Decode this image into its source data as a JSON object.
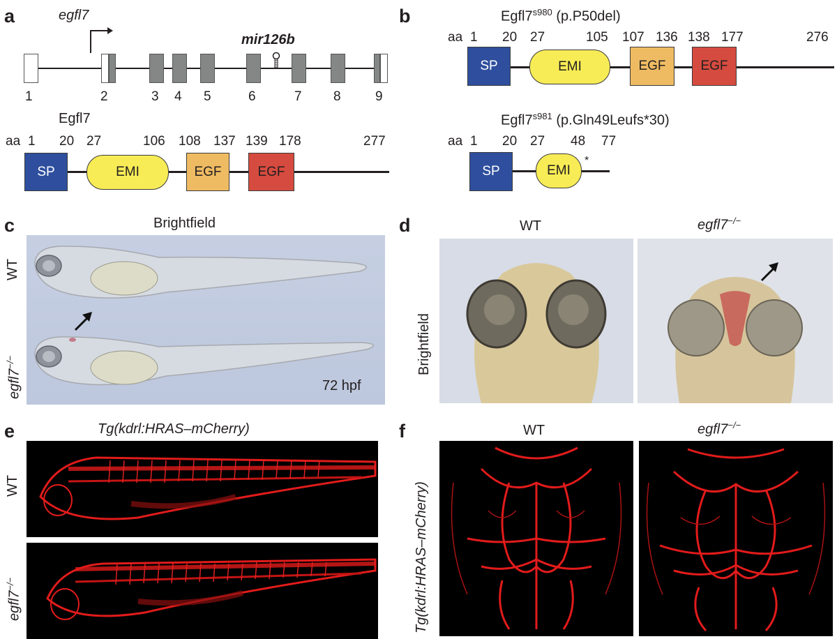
{
  "panel_a": {
    "label": "a",
    "gene": "egfl7",
    "mirna": "mir126b",
    "exon_numbers": [
      "1",
      "2",
      "3",
      "4",
      "5",
      "6",
      "7",
      "8",
      "9"
    ],
    "protein_name": "Egfl7",
    "aa_prefix": "aa",
    "positions": [
      "1",
      "20",
      "27",
      "106",
      "108",
      "137",
      "139",
      "178",
      "277"
    ],
    "domains": {
      "sp": "SP",
      "emi": "EMI",
      "egf1": "EGF",
      "egf2": "EGF"
    }
  },
  "panel_b": {
    "label": "b",
    "allele1": {
      "name": "Egfl7",
      "sup": "s980",
      "change": " (p.P50del)",
      "positions": [
        "1",
        "20",
        "27",
        "105",
        "107",
        "136",
        "138",
        "177",
        "276"
      ],
      "domains": {
        "sp": "SP",
        "emi": "EMI",
        "egf1": "EGF",
        "egf2": "EGF"
      }
    },
    "allele2": {
      "name": "Egfl7",
      "sup": "s981",
      "change": " (p.Gln49Leufs*30)",
      "positions": [
        "1",
        "20",
        "27",
        "48",
        "77"
      ],
      "domains": {
        "sp": "SP",
        "emi": "EMI"
      },
      "stop": "*"
    },
    "aa_prefix": "aa"
  },
  "panel_c": {
    "label": "c",
    "title": "Brightfield",
    "row1": "WT",
    "row2": "egfl7",
    "row2_sup": "−/−",
    "stage": "72 hpf"
  },
  "panel_d": {
    "label": "d",
    "col1": "WT",
    "col2": "egfl7",
    "col2_sup": "−/−",
    "side": "Brightfield"
  },
  "panel_e": {
    "label": "e",
    "title": "Tg(kdrl:HRAS–mCherry)",
    "row1": "WT",
    "row2": "egfl7",
    "row2_sup": "−/−"
  },
  "panel_f": {
    "label": "f",
    "col1": "WT",
    "col2": "egfl7",
    "col2_sup": "−/−",
    "side": "Tg(kdrl:HRAS–mCherry)"
  }
}
